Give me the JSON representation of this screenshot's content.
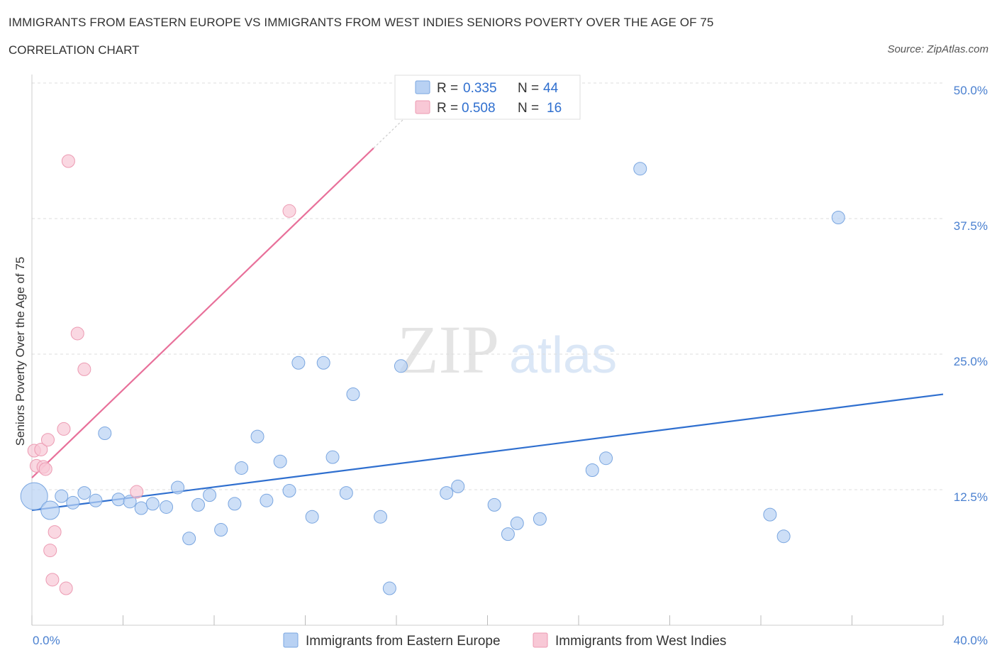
{
  "title": "IMMIGRANTS FROM EASTERN EUROPE VS IMMIGRANTS FROM WEST INDIES SENIORS POVERTY OVER THE AGE OF 75",
  "subtitle": "CORRELATION CHART",
  "source": "Source: ZipAtlas.com",
  "watermark": {
    "zip": "ZIP",
    "atlas": "atlas"
  },
  "colors": {
    "blue_fill": "#b8d1f3",
    "blue_stroke": "#7aa6e0",
    "blue_line": "#2f6fcf",
    "pink_fill": "#f8c8d6",
    "pink_stroke": "#ec9ab2",
    "pink_line": "#e8709a",
    "value_text": "#2f6fcf",
    "grid": "#dddddd"
  },
  "legend": {
    "rows": [
      {
        "r_label": "R = ",
        "r_value": "0.335",
        "n_label": "N = ",
        "n_value": "44"
      },
      {
        "r_label": "R = ",
        "r_value": "0.508",
        "n_label": "N = ",
        "n_value": "16"
      }
    ]
  },
  "chart_data": {
    "type": "scatter",
    "title": "IMMIGRANTS FROM EASTERN EUROPE VS IMMIGRANTS FROM WEST INDIES SENIORS POVERTY OVER THE AGE OF 75",
    "xlabel": "",
    "ylabel": "Seniors Poverty Over the Age of 75",
    "xlim": [
      0,
      40
    ],
    "ylim": [
      0,
      50
    ],
    "x_tick_labels": [
      {
        "value": 0,
        "label": "0.0%"
      },
      {
        "value": 40,
        "label": "40.0%"
      }
    ],
    "y_tick_labels": [
      {
        "value": 12.5,
        "label": "12.5%"
      },
      {
        "value": 25,
        "label": "25.0%"
      },
      {
        "value": 37.5,
        "label": "37.5%"
      },
      {
        "value": 50,
        "label": "50.0%"
      }
    ],
    "series": [
      {
        "name": "Immigrants from Eastern Europe",
        "color": "#b8d1f3",
        "r": 0.335,
        "n": 44,
        "trend": {
          "x": [
            0,
            40
          ],
          "y": [
            10.6,
            21.3
          ]
        },
        "points": [
          {
            "x": 0.1,
            "y": 11.9,
            "size": "large"
          },
          {
            "x": 0.8,
            "y": 10.6,
            "size": "medium"
          },
          {
            "x": 1.3,
            "y": 11.9
          },
          {
            "x": 1.8,
            "y": 11.3
          },
          {
            "x": 2.3,
            "y": 12.2
          },
          {
            "x": 2.8,
            "y": 11.5
          },
          {
            "x": 3.2,
            "y": 17.7
          },
          {
            "x": 3.8,
            "y": 11.6
          },
          {
            "x": 4.3,
            "y": 11.4
          },
          {
            "x": 4.8,
            "y": 10.8
          },
          {
            "x": 5.3,
            "y": 11.2
          },
          {
            "x": 5.9,
            "y": 10.9
          },
          {
            "x": 6.4,
            "y": 12.7
          },
          {
            "x": 6.9,
            "y": 8.0
          },
          {
            "x": 7.3,
            "y": 11.1
          },
          {
            "x": 7.8,
            "y": 12.0
          },
          {
            "x": 8.3,
            "y": 8.8
          },
          {
            "x": 8.9,
            "y": 11.2
          },
          {
            "x": 9.2,
            "y": 14.5
          },
          {
            "x": 9.9,
            "y": 17.4
          },
          {
            "x": 10.3,
            "y": 11.5
          },
          {
            "x": 10.9,
            "y": 15.1
          },
          {
            "x": 11.3,
            "y": 12.4
          },
          {
            "x": 11.7,
            "y": 24.2
          },
          {
            "x": 12.3,
            "y": 10.0
          },
          {
            "x": 12.8,
            "y": 24.2
          },
          {
            "x": 13.2,
            "y": 15.5
          },
          {
            "x": 13.8,
            "y": 12.2
          },
          {
            "x": 14.1,
            "y": 21.3
          },
          {
            "x": 15.3,
            "y": 10.0
          },
          {
            "x": 15.7,
            "y": 3.4
          },
          {
            "x": 16.2,
            "y": 23.9
          },
          {
            "x": 18.2,
            "y": 12.2
          },
          {
            "x": 18.7,
            "y": 12.8
          },
          {
            "x": 20.3,
            "y": 11.1
          },
          {
            "x": 20.9,
            "y": 8.4
          },
          {
            "x": 21.3,
            "y": 9.4
          },
          {
            "x": 22.3,
            "y": 9.8
          },
          {
            "x": 24.6,
            "y": 14.3
          },
          {
            "x": 25.2,
            "y": 15.4
          },
          {
            "x": 26.7,
            "y": 42.1
          },
          {
            "x": 32.4,
            "y": 10.2
          },
          {
            "x": 33.0,
            "y": 8.2
          },
          {
            "x": 35.4,
            "y": 37.6
          }
        ]
      },
      {
        "name": "Immigrants from West Indies",
        "color": "#f8c8d6",
        "r": 0.508,
        "n": 16,
        "trend": {
          "x": [
            0,
            15
          ],
          "y": [
            13.6,
            44.0
          ]
        },
        "points": [
          {
            "x": 0.1,
            "y": 16.1
          },
          {
            "x": 0.2,
            "y": 14.7
          },
          {
            "x": 0.4,
            "y": 16.2
          },
          {
            "x": 0.5,
            "y": 14.6
          },
          {
            "x": 0.6,
            "y": 14.4
          },
          {
            "x": 0.7,
            "y": 17.1
          },
          {
            "x": 0.8,
            "y": 6.9
          },
          {
            "x": 0.9,
            "y": 4.2
          },
          {
            "x": 1.0,
            "y": 8.6
          },
          {
            "x": 1.4,
            "y": 18.1
          },
          {
            "x": 1.5,
            "y": 3.4
          },
          {
            "x": 1.6,
            "y": 42.8
          },
          {
            "x": 2.0,
            "y": 26.9
          },
          {
            "x": 2.3,
            "y": 23.6
          },
          {
            "x": 4.6,
            "y": 12.3
          },
          {
            "x": 11.3,
            "y": 38.2
          }
        ]
      }
    ]
  },
  "bottom_legend": {
    "items": [
      {
        "label": "Immigrants from Eastern Europe"
      },
      {
        "label": "Immigrants from West Indies"
      }
    ]
  }
}
